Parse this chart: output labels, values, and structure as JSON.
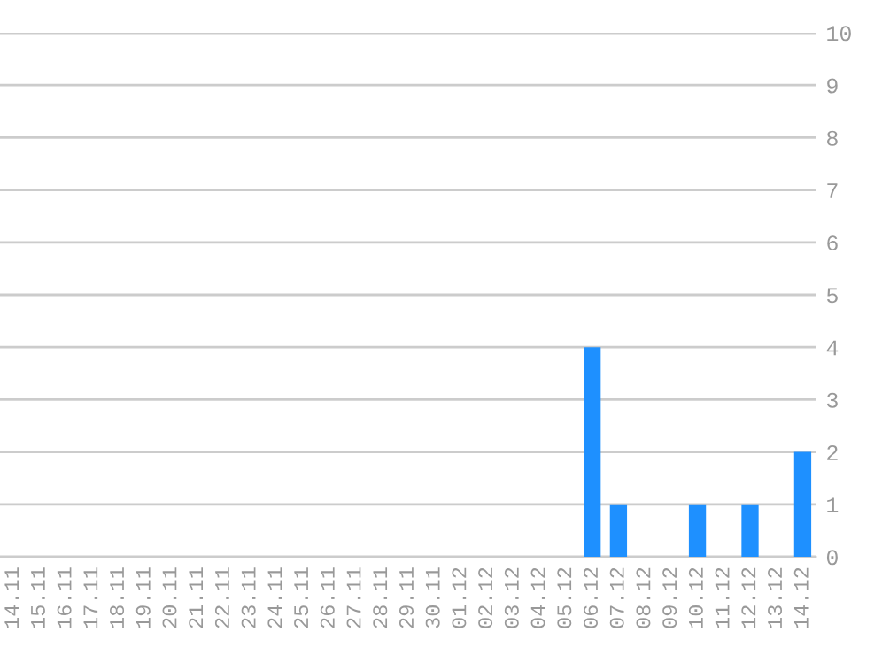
{
  "chart_data": {
    "type": "bar",
    "categories": [
      "14.11",
      "15.11",
      "16.11",
      "17.11",
      "18.11",
      "19.11",
      "20.11",
      "21.11",
      "22.11",
      "23.11",
      "24.11",
      "25.11",
      "26.11",
      "27.11",
      "28.11",
      "29.11",
      "30.11",
      "01.12",
      "02.12",
      "03.12",
      "04.12",
      "05.12",
      "06.12",
      "07.12",
      "08.12",
      "09.12",
      "10.12",
      "11.12",
      "12.12",
      "13.12",
      "14.12"
    ],
    "values": [
      0,
      0,
      0,
      0,
      0,
      0,
      0,
      0,
      0,
      0,
      0,
      0,
      0,
      0,
      0,
      0,
      0,
      0,
      0,
      0,
      0,
      0,
      4,
      1,
      0,
      0,
      1,
      0,
      1,
      0,
      2
    ],
    "color": "#1e90ff",
    "ylim": [
      0,
      10
    ],
    "yticks": [
      0,
      1,
      2,
      3,
      4,
      5,
      6,
      7,
      8,
      9,
      10
    ],
    "grid": "y"
  }
}
